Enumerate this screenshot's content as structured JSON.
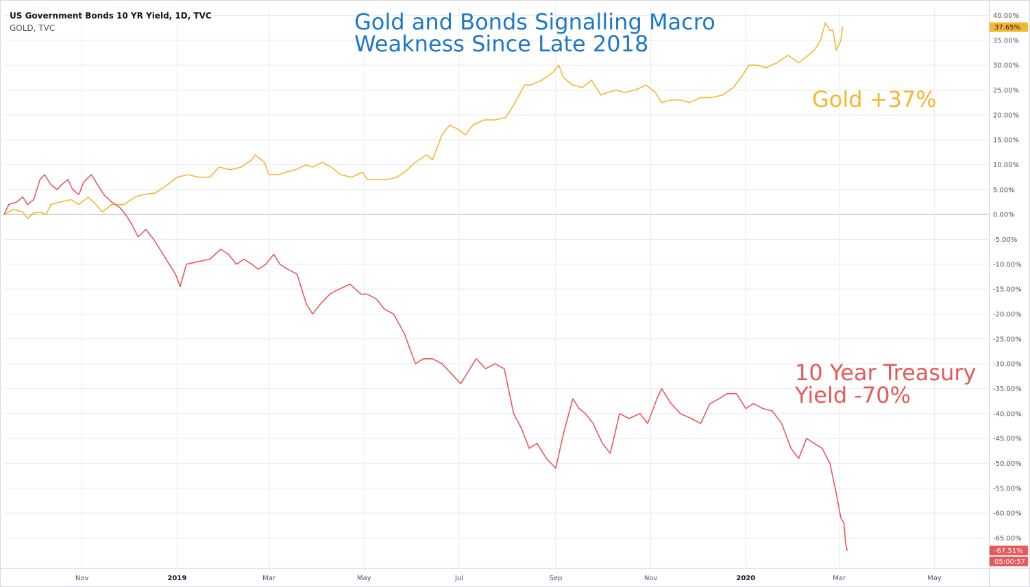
{
  "legend": {
    "main": "US Government Bonds 10 YR Yield, 1D, TVC",
    "sub": "GOLD, TVC"
  },
  "annotations": {
    "title_line1": "Gold and Bonds Signalling Macro",
    "title_line2": "Weakness Since Late 2018",
    "gold_label": "Gold +37%",
    "bond_label_line1": "10 Year Treasury",
    "bond_label_line2": "Yield -70%"
  },
  "badges": {
    "gold_value": "37.65%",
    "bond_value": "-67.51%",
    "countdown": "05:00:57"
  },
  "colors": {
    "gold": "#f5b731",
    "bond": "#e55a5a",
    "title": "#1e78c8",
    "grid": "#e9eaee",
    "baseline": "#b2b5be",
    "axis": "#50535e"
  },
  "chart_data": {
    "type": "line",
    "y_unit": "%",
    "ylim": [
      -71,
      42
    ],
    "y_ticks": [
      "40.00%",
      "35.00%",
      "30.00%",
      "25.00%",
      "20.00%",
      "15.00%",
      "10.00%",
      "5.00%",
      "0.00%",
      "-5.00%",
      "-10.00%",
      "-15.00%",
      "-20.00%",
      "-25.00%",
      "-30.00%",
      "-35.00%",
      "-40.00%",
      "-45.00%",
      "-50.00%",
      "-55.00%",
      "-60.00%",
      "-65.00%"
    ],
    "y_tick_values": [
      40,
      35,
      30,
      25,
      20,
      15,
      10,
      5,
      0,
      -5,
      -10,
      -15,
      -20,
      -25,
      -30,
      -35,
      -40,
      -45,
      -50,
      -55,
      -60,
      -65
    ],
    "x_ticks": [
      "Nov",
      "2019",
      "Mar",
      "May",
      "Jul",
      "Sep",
      "Nov",
      "2020",
      "Mar",
      "May"
    ],
    "x_tick_dates": [
      "2018-11-01",
      "2019-01-01",
      "2019-03-01",
      "2019-05-01",
      "2019-07-01",
      "2019-09-01",
      "2019-11-01",
      "2020-01-01",
      "2020-03-01",
      "2020-05-01"
    ],
    "x_range": [
      "2018-09-12",
      "2020-06-05"
    ],
    "grid": true,
    "series": [
      {
        "name": "GOLD, TVC",
        "color": "#f5b731",
        "points": [
          [
            "2018-09-12",
            0
          ],
          [
            "2018-09-18",
            1
          ],
          [
            "2018-09-24",
            0.5
          ],
          [
            "2018-09-27",
            -0.8
          ],
          [
            "2018-10-01",
            0.3
          ],
          [
            "2018-10-05",
            0.5
          ],
          [
            "2018-10-09",
            0
          ],
          [
            "2018-10-12",
            2
          ],
          [
            "2018-10-18",
            2.5
          ],
          [
            "2018-10-25",
            3
          ],
          [
            "2018-10-30",
            2
          ],
          [
            "2018-11-05",
            3.5
          ],
          [
            "2018-11-10",
            2
          ],
          [
            "2018-11-14",
            0.5
          ],
          [
            "2018-11-20",
            2
          ],
          [
            "2018-11-28",
            2
          ],
          [
            "2018-12-05",
            3.5
          ],
          [
            "2018-12-10",
            4
          ],
          [
            "2018-12-18",
            4.3
          ],
          [
            "2018-12-26",
            6
          ],
          [
            "2019-01-01",
            7.5
          ],
          [
            "2019-01-08",
            8
          ],
          [
            "2019-01-15",
            7.5
          ],
          [
            "2019-01-22",
            7.5
          ],
          [
            "2019-01-28",
            9.5
          ],
          [
            "2019-02-04",
            9
          ],
          [
            "2019-02-11",
            9.5
          ],
          [
            "2019-02-18",
            11
          ],
          [
            "2019-02-20",
            12
          ],
          [
            "2019-02-26",
            10.5
          ],
          [
            "2019-03-01",
            8
          ],
          [
            "2019-03-07",
            8
          ],
          [
            "2019-03-12",
            8.5
          ],
          [
            "2019-03-18",
            9
          ],
          [
            "2019-03-25",
            10
          ],
          [
            "2019-03-29",
            9.5
          ],
          [
            "2019-04-04",
            10.5
          ],
          [
            "2019-04-10",
            9.5
          ],
          [
            "2019-04-16",
            8
          ],
          [
            "2019-04-23",
            7.5
          ],
          [
            "2019-04-30",
            8.5
          ],
          [
            "2019-05-03",
            7
          ],
          [
            "2019-05-10",
            7
          ],
          [
            "2019-05-16",
            7
          ],
          [
            "2019-05-22",
            7.5
          ],
          [
            "2019-05-27",
            8.5
          ],
          [
            "2019-06-03",
            10.5
          ],
          [
            "2019-06-10",
            12
          ],
          [
            "2019-06-14",
            11
          ],
          [
            "2019-06-20",
            16
          ],
          [
            "2019-06-25",
            18
          ],
          [
            "2019-07-01",
            17
          ],
          [
            "2019-07-05",
            16
          ],
          [
            "2019-07-10",
            18
          ],
          [
            "2019-07-17",
            19
          ],
          [
            "2019-07-24",
            19
          ],
          [
            "2019-07-31",
            19.5
          ],
          [
            "2019-08-05",
            22
          ],
          [
            "2019-08-12",
            26
          ],
          [
            "2019-08-16",
            26
          ],
          [
            "2019-08-23",
            27
          ],
          [
            "2019-08-30",
            28.5
          ],
          [
            "2019-09-03",
            30
          ],
          [
            "2019-09-06",
            27.5
          ],
          [
            "2019-09-12",
            26
          ],
          [
            "2019-09-18",
            25.5
          ],
          [
            "2019-09-24",
            27
          ],
          [
            "2019-09-30",
            24
          ],
          [
            "2019-10-04",
            24.5
          ],
          [
            "2019-10-10",
            25
          ],
          [
            "2019-10-15",
            24.5
          ],
          [
            "2019-10-22",
            25
          ],
          [
            "2019-10-29",
            26
          ],
          [
            "2019-11-04",
            24.5
          ],
          [
            "2019-11-08",
            22.5
          ],
          [
            "2019-11-14",
            23
          ],
          [
            "2019-11-20",
            23
          ],
          [
            "2019-11-26",
            22.5
          ],
          [
            "2019-12-03",
            23.5
          ],
          [
            "2019-12-10",
            23.5
          ],
          [
            "2019-12-17",
            24
          ],
          [
            "2019-12-24",
            25.5
          ],
          [
            "2019-12-30",
            28
          ],
          [
            "2020-01-03",
            30
          ],
          [
            "2020-01-08",
            30
          ],
          [
            "2020-01-14",
            29.5
          ],
          [
            "2020-01-21",
            30.5
          ],
          [
            "2020-01-28",
            32
          ],
          [
            "2020-02-04",
            30.5
          ],
          [
            "2020-02-10",
            32
          ],
          [
            "2020-02-14",
            33
          ],
          [
            "2020-02-18",
            35
          ],
          [
            "2020-02-21",
            38.5
          ],
          [
            "2020-02-24",
            37
          ],
          [
            "2020-02-26",
            37
          ],
          [
            "2020-02-28",
            33
          ],
          [
            "2020-03-02",
            35
          ],
          [
            "2020-03-03",
            37.65
          ]
        ]
      },
      {
        "name": "US Government Bonds 10 YR Yield, 1D, TVC",
        "color": "#e55a5a",
        "points": [
          [
            "2018-09-12",
            0
          ],
          [
            "2018-09-15",
            2
          ],
          [
            "2018-09-20",
            2.5
          ],
          [
            "2018-09-24",
            3.5
          ],
          [
            "2018-09-27",
            2
          ],
          [
            "2018-10-01",
            3
          ],
          [
            "2018-10-05",
            7
          ],
          [
            "2018-10-08",
            8
          ],
          [
            "2018-10-12",
            6
          ],
          [
            "2018-10-16",
            5
          ],
          [
            "2018-10-19",
            6
          ],
          [
            "2018-10-23",
            7
          ],
          [
            "2018-10-26",
            5
          ],
          [
            "2018-10-30",
            4
          ],
          [
            "2018-11-02",
            6.5
          ],
          [
            "2018-11-07",
            8
          ],
          [
            "2018-11-11",
            6
          ],
          [
            "2018-11-15",
            4
          ],
          [
            "2018-11-20",
            2.5
          ],
          [
            "2018-11-25",
            1.5
          ],
          [
            "2018-11-29",
            0
          ],
          [
            "2018-12-03",
            -2
          ],
          [
            "2018-12-07",
            -4.5
          ],
          [
            "2018-12-12",
            -3
          ],
          [
            "2018-12-17",
            -5
          ],
          [
            "2018-12-21",
            -7
          ],
          [
            "2018-12-27",
            -10
          ],
          [
            "2018-12-31",
            -12
          ],
          [
            "2019-01-03",
            -14.5
          ],
          [
            "2019-01-07",
            -10
          ],
          [
            "2019-01-14",
            -9.5
          ],
          [
            "2019-01-22",
            -9
          ],
          [
            "2019-01-29",
            -7
          ],
          [
            "2019-02-03",
            -8
          ],
          [
            "2019-02-08",
            -10
          ],
          [
            "2019-02-13",
            -9
          ],
          [
            "2019-02-18",
            -10
          ],
          [
            "2019-02-22",
            -11
          ],
          [
            "2019-02-27",
            -10
          ],
          [
            "2019-03-04",
            -8
          ],
          [
            "2019-03-08",
            -10
          ],
          [
            "2019-03-13",
            -11
          ],
          [
            "2019-03-19",
            -12
          ],
          [
            "2019-03-25",
            -18
          ],
          [
            "2019-03-29",
            -20
          ],
          [
            "2019-04-03",
            -18
          ],
          [
            "2019-04-09",
            -16
          ],
          [
            "2019-04-15",
            -15
          ],
          [
            "2019-04-22",
            -14
          ],
          [
            "2019-04-29",
            -16
          ],
          [
            "2019-05-03",
            -16
          ],
          [
            "2019-05-09",
            -17
          ],
          [
            "2019-05-14",
            -19
          ],
          [
            "2019-05-20",
            -20
          ],
          [
            "2019-05-27",
            -24
          ],
          [
            "2019-06-03",
            -30
          ],
          [
            "2019-06-08",
            -29
          ],
          [
            "2019-06-14",
            -29
          ],
          [
            "2019-06-20",
            -30
          ],
          [
            "2019-06-26",
            -32
          ],
          [
            "2019-07-02",
            -34
          ],
          [
            "2019-07-08",
            -31
          ],
          [
            "2019-07-12",
            -29
          ],
          [
            "2019-07-18",
            -31
          ],
          [
            "2019-07-24",
            -30
          ],
          [
            "2019-07-30",
            -31
          ],
          [
            "2019-08-05",
            -40
          ],
          [
            "2019-08-10",
            -43
          ],
          [
            "2019-08-15",
            -47
          ],
          [
            "2019-08-20",
            -46
          ],
          [
            "2019-08-26",
            -49
          ],
          [
            "2019-09-01",
            -51
          ],
          [
            "2019-09-06",
            -44
          ],
          [
            "2019-09-12",
            -37
          ],
          [
            "2019-09-16",
            -39
          ],
          [
            "2019-09-20",
            -40
          ],
          [
            "2019-09-25",
            -42
          ],
          [
            "2019-10-01",
            -46
          ],
          [
            "2019-10-06",
            -48
          ],
          [
            "2019-10-12",
            -40
          ],
          [
            "2019-10-18",
            -41
          ],
          [
            "2019-10-25",
            -40
          ],
          [
            "2019-10-30",
            -42
          ],
          [
            "2019-11-05",
            -37
          ],
          [
            "2019-11-08",
            -35
          ],
          [
            "2019-11-14",
            -38
          ],
          [
            "2019-11-20",
            -40
          ],
          [
            "2019-11-27",
            -41
          ],
          [
            "2019-12-03",
            -42
          ],
          [
            "2019-12-09",
            -38
          ],
          [
            "2019-12-15",
            -37
          ],
          [
            "2019-12-20",
            -36
          ],
          [
            "2019-12-26",
            -36
          ],
          [
            "2020-01-01",
            -39
          ],
          [
            "2020-01-06",
            -38
          ],
          [
            "2020-01-12",
            -39
          ],
          [
            "2020-01-18",
            -39.5
          ],
          [
            "2020-01-24",
            -42
          ],
          [
            "2020-01-30",
            -47
          ],
          [
            "2020-02-04",
            -49
          ],
          [
            "2020-02-09",
            -45
          ],
          [
            "2020-02-14",
            -46
          ],
          [
            "2020-02-19",
            -47
          ],
          [
            "2020-02-24",
            -50
          ],
          [
            "2020-02-26",
            -53
          ],
          [
            "2020-02-28",
            -56
          ],
          [
            "2020-03-02",
            -61
          ],
          [
            "2020-03-04",
            -62
          ],
          [
            "2020-03-05",
            -66
          ],
          [
            "2020-03-06",
            -67.51
          ]
        ]
      }
    ]
  }
}
